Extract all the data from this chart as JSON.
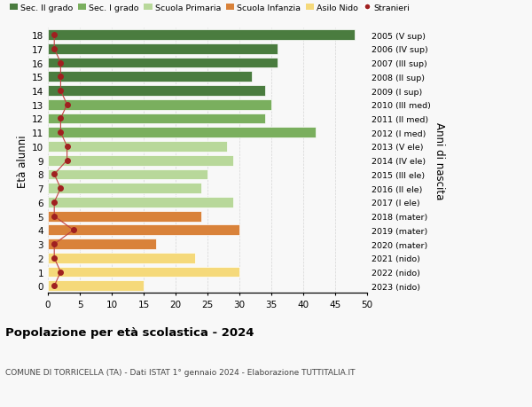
{
  "ages": [
    18,
    17,
    16,
    15,
    14,
    13,
    12,
    11,
    10,
    9,
    8,
    7,
    6,
    5,
    4,
    3,
    2,
    1,
    0
  ],
  "bar_values": [
    48,
    36,
    36,
    32,
    34,
    35,
    34,
    42,
    28,
    29,
    25,
    24,
    29,
    24,
    30,
    17,
    23,
    30,
    15
  ],
  "stranieri": [
    1,
    1,
    2,
    2,
    2,
    3,
    2,
    2,
    3,
    3,
    1,
    2,
    1,
    1,
    4,
    1,
    1,
    2,
    1
  ],
  "right_labels": [
    "2005 (V sup)",
    "2006 (IV sup)",
    "2007 (III sup)",
    "2008 (II sup)",
    "2009 (I sup)",
    "2010 (III med)",
    "2011 (II med)",
    "2012 (I med)",
    "2013 (V ele)",
    "2014 (IV ele)",
    "2015 (III ele)",
    "2016 (II ele)",
    "2017 (I ele)",
    "2018 (mater)",
    "2019 (mater)",
    "2020 (mater)",
    "2021 (nido)",
    "2022 (nido)",
    "2023 (nido)"
  ],
  "bar_colors": [
    "#4a7c3f",
    "#4a7c3f",
    "#4a7c3f",
    "#4a7c3f",
    "#4a7c3f",
    "#7aaf5e",
    "#7aaf5e",
    "#7aaf5e",
    "#b8d89a",
    "#b8d89a",
    "#b8d89a",
    "#b8d89a",
    "#b8d89a",
    "#d9823a",
    "#d9823a",
    "#d9823a",
    "#f5d97a",
    "#f5d97a",
    "#f5d97a"
  ],
  "legend_labels": [
    "Sec. II grado",
    "Sec. I grado",
    "Scuola Primaria",
    "Scuola Infanzia",
    "Asilo Nido",
    "Stranieri"
  ],
  "legend_colors": [
    "#4a7c3f",
    "#7aaf5e",
    "#b8d89a",
    "#d9823a",
    "#f5d97a",
    "#a02020"
  ],
  "title": "Popolazione per età scolastica - 2024",
  "subtitle": "COMUNE DI TORRICELLA (TA) - Dati ISTAT 1° gennaio 2024 - Elaborazione TUTTITALIA.IT",
  "ylabel": "Età alunni",
  "right_ylabel": "Anni di nascita",
  "xlim": [
    0,
    50
  ],
  "xticks": [
    0,
    5,
    10,
    15,
    20,
    25,
    30,
    35,
    40,
    45,
    50
  ],
  "bar_height": 0.75,
  "background_color": "#f8f8f8",
  "grid_color": "#cccccc",
  "stranieri_color": "#a02020",
  "stranieri_line_color": "#c04040"
}
